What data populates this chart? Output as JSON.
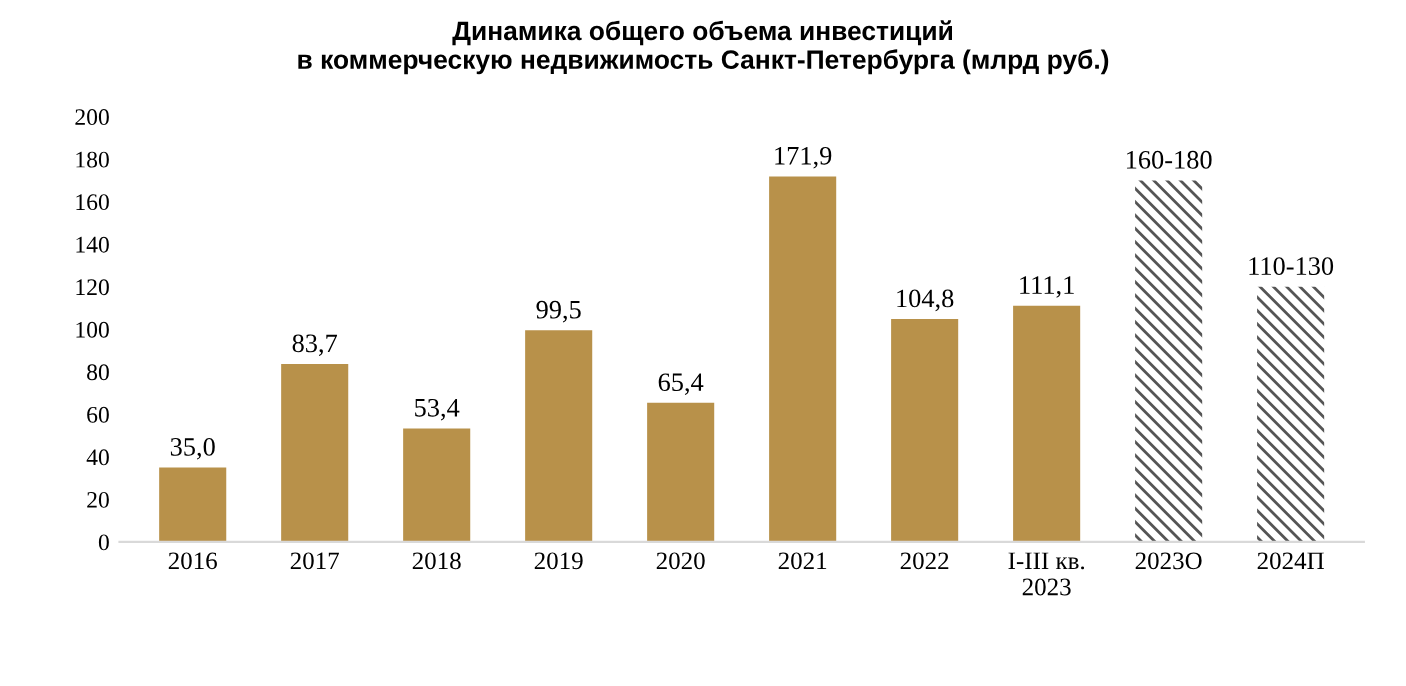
{
  "chart_data": {
    "type": "bar",
    "title": "Динамика общего объема инвестиций\nв коммерческую недвижимость Санкт-Петербурга (млрд руб.)",
    "categories": [
      "2016",
      "2017",
      "2018",
      "2019",
      "2020",
      "2021",
      "2022",
      "I-III кв.\n2023",
      "2023О",
      "2024П"
    ],
    "series": [
      {
        "color": "#b8914a",
        "values": [
          35.0,
          83.7,
          53.4,
          99.5,
          65.4,
          171.9,
          104.8,
          111.1,
          null,
          null
        ],
        "value_labels": [
          "35,0",
          "83,7",
          "53,4",
          "99,5",
          "65,4",
          "171,9",
          "104,8",
          "111,1",
          null,
          null
        ]
      },
      {
        "color": "#555555",
        "values": [
          null,
          null,
          null,
          null,
          null,
          null,
          null,
          null,
          170,
          120
        ],
        "value_labels": [
          null,
          null,
          null,
          null,
          null,
          null,
          null,
          null,
          "160-180",
          "110-130"
        ]
      }
    ],
    "ylim": [
      0,
      200
    ],
    "yticks": [
      0,
      20,
      40,
      60,
      80,
      100,
      120,
      140,
      160,
      180,
      200
    ],
    "grid": false,
    "legend": false
  }
}
